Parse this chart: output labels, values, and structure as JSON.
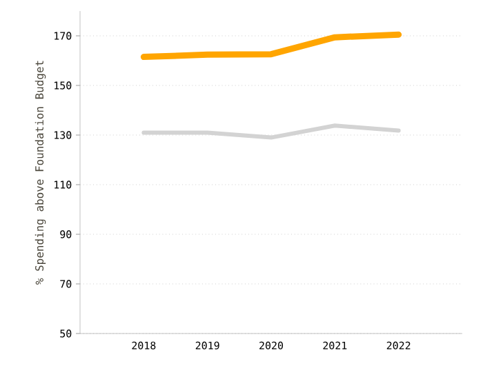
{
  "chart_data": {
    "type": "line",
    "ylabel": "% Spending above Foundation Budget",
    "categories": [
      "2018",
      "2019",
      "2020",
      "2021",
      "2022"
    ],
    "series": [
      {
        "color": "#ffa500",
        "values": [
          161.5,
          162.4,
          162.6,
          169.4,
          170.5
        ]
      },
      {
        "color": "#d3d3d3",
        "values": [
          131,
          131,
          129,
          133.8,
          131.8
        ]
      }
    ],
    "ylim": [
      50,
      180
    ],
    "yticks": [
      50,
      70,
      90,
      110,
      130,
      150,
      170
    ],
    "grid": "y",
    "marker": "none",
    "line_style": "solid"
  }
}
